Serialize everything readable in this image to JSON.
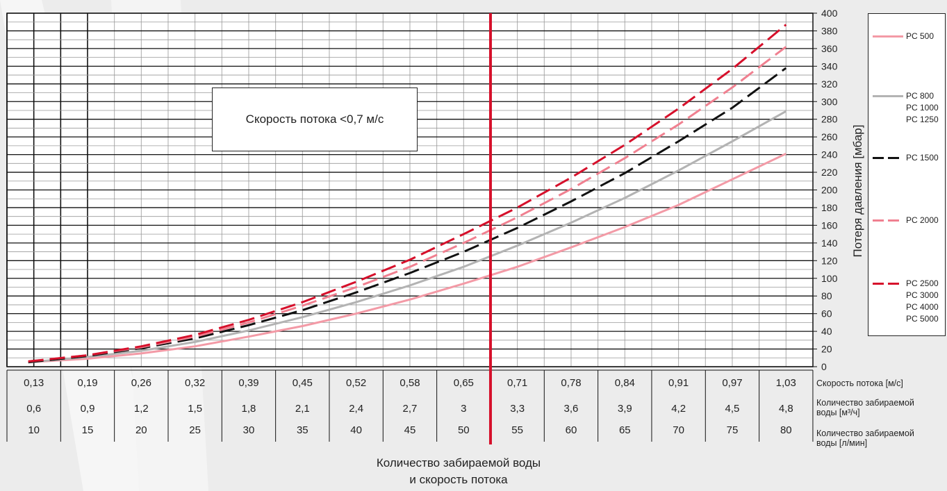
{
  "chart_data": {
    "type": "line",
    "annotation": "Скорость потока <0,7 м/с",
    "ylabel": "Потеря давления [мбар]",
    "ylim": [
      0,
      400
    ],
    "yticks": [
      0,
      20,
      40,
      60,
      80,
      100,
      120,
      140,
      160,
      180,
      200,
      220,
      240,
      260,
      280,
      300,
      320,
      340,
      360,
      380,
      400
    ],
    "x_rows": [
      {
        "label": "Скорость потока [м/с]",
        "values": [
          "0,13",
          "0,19",
          "0,26",
          "0,32",
          "0,39",
          "0,45",
          "0,52",
          "0,58",
          "0,65",
          "0,71",
          "0,78",
          "0,84",
          "0,91",
          "0,97",
          "1,03"
        ]
      },
      {
        "label_lines": [
          "Количество забираемой",
          "воды [м³/ч]"
        ],
        "values": [
          "0,6",
          "0,9",
          "1,2",
          "1,5",
          "1,8",
          "2,1",
          "2,4",
          "2,7",
          "3",
          "3,3",
          "3,6",
          "3,9",
          "4,2",
          "4,5",
          "4,8"
        ]
      },
      {
        "label_lines": [
          "Количество забираемой",
          "воды [л/мин]"
        ],
        "values": [
          "10",
          "15",
          "20",
          "25",
          "30",
          "35",
          "40",
          "45",
          "50",
          "55",
          "60",
          "65",
          "70",
          "75",
          "80"
        ]
      }
    ],
    "xlabel_lines": [
      "Количество забираемой воды",
      "и скорость потока"
    ],
    "x": [
      10,
      15,
      20,
      25,
      30,
      35,
      40,
      45,
      50,
      55,
      60,
      65,
      70,
      75,
      80
    ],
    "threshold_x": 55,
    "series": [
      {
        "name_lines": [
          "PC 500"
        ],
        "color": "#f39aa6",
        "dash": "solid",
        "values": [
          5,
          9,
          15,
          23,
          34,
          46,
          60,
          76,
          94,
          113,
          135,
          158,
          183,
          212,
          241
        ]
      },
      {
        "name_lines": [
          "PC 800",
          "PC 1000",
          "PC 1250"
        ],
        "color": "#b3b3b3",
        "dash": "solid",
        "values": [
          5,
          11,
          18,
          28,
          41,
          56,
          73,
          92,
          113,
          137,
          163,
          191,
          222,
          255,
          289
        ]
      },
      {
        "name_lines": [
          "PC 1500"
        ],
        "color": "#111111",
        "dash": "dashed",
        "values": [
          5,
          12,
          21,
          32,
          47,
          64,
          84,
          106,
          130,
          157,
          187,
          219,
          255,
          293,
          338
        ]
      },
      {
        "name_lines": [
          "PC 2000"
        ],
        "color": "#f08090",
        "dash": "dashed",
        "values": [
          6,
          13,
          22,
          34,
          50,
          69,
          90,
          113,
          140,
          169,
          201,
          236,
          274,
          316,
          362
        ]
      },
      {
        "name_lines": [
          "PC 2500",
          "PC 3000",
          "PC 4000",
          "PC 5000"
        ],
        "color": "#d6102b",
        "dash": "dashed",
        "values": [
          6,
          13,
          23,
          36,
          53,
          73,
          96,
          121,
          150,
          180,
          214,
          251,
          292,
          337,
          387
        ]
      }
    ]
  }
}
